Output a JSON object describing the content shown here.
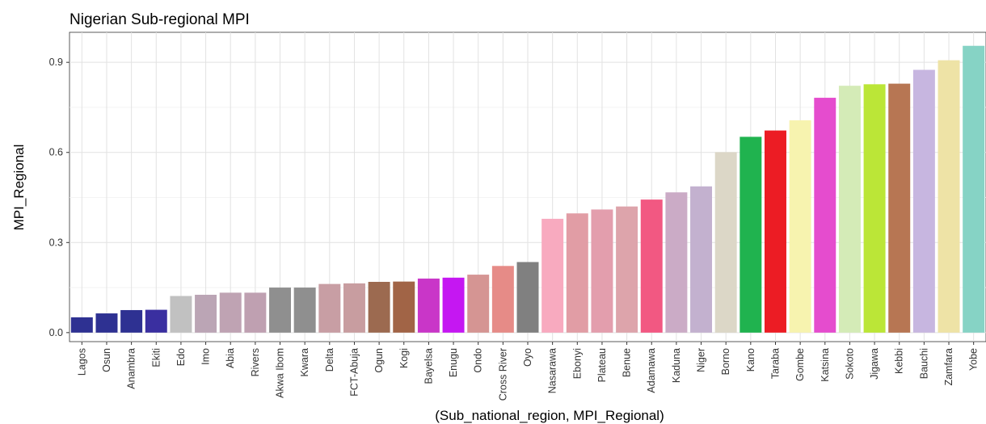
{
  "chart_data": {
    "type": "bar",
    "title": "Nigerian Sub-regional MPI",
    "xlabel": "(Sub_national_region, MPI_Regional)",
    "ylabel": "MPI_Regional",
    "ylim": [
      -0.03,
      1.0
    ],
    "yticks": [
      0.0,
      0.3,
      0.6,
      0.9
    ],
    "ytick_labels": [
      "0.0",
      "0.3",
      "0.6",
      "0.9"
    ],
    "grid": true,
    "legend": "none",
    "categories": [
      "Lagos",
      "Osun",
      "Anambra",
      "Ekiti",
      "Edo",
      "Imo",
      "Abia",
      "Rivers",
      "Akwa Ibom",
      "Kwara",
      "Delta",
      "FCT-Abuja",
      "Ogun",
      "Kogi",
      "Bayelsa",
      "Enugu",
      "Ondo",
      "Cross River",
      "Oyo",
      "Nasarawa",
      "Ebonyi",
      "Plateau",
      "Benue",
      "Adamawa",
      "Kaduna",
      "Niger",
      "Borno",
      "Kano",
      "Taraba",
      "Gombe",
      "Katsina",
      "Sokoto",
      "Jigawa",
      "Kebbi",
      "Bauchi",
      "Zamfara",
      "Yobe"
    ],
    "values": [
      0.051,
      0.064,
      0.075,
      0.076,
      0.122,
      0.126,
      0.133,
      0.133,
      0.15,
      0.15,
      0.162,
      0.164,
      0.169,
      0.17,
      0.18,
      0.183,
      0.193,
      0.222,
      0.235,
      0.379,
      0.397,
      0.41,
      0.42,
      0.443,
      0.467,
      0.487,
      0.601,
      0.652,
      0.673,
      0.707,
      0.782,
      0.822,
      0.827,
      0.829,
      0.875,
      0.907,
      0.955
    ],
    "colors": [
      "#2E3192",
      "#2E3192",
      "#2E3192",
      "#3A2FA0",
      "#C1C1C1",
      "#BBA5B5",
      "#BFA3B3",
      "#BFA0B1",
      "#8F8F8F",
      "#8F8F8F",
      "#C89EA4",
      "#C89DA0",
      "#9C6A50",
      "#A16446",
      "#C936C8",
      "#C517F2",
      "#D59593",
      "#E68B87",
      "#808080",
      "#F8AABF",
      "#E19DA5",
      "#E39EAD",
      "#DDA4AB",
      "#F25882",
      "#CBABC6",
      "#C3B1CF",
      "#DCD7C7",
      "#20B34F",
      "#EC1C24",
      "#F7F3AF",
      "#E54CCE",
      "#D4EBB7",
      "#BBE637",
      "#B77653",
      "#C7B6E0",
      "#EEE3A6",
      "#86D3C5"
    ]
  }
}
